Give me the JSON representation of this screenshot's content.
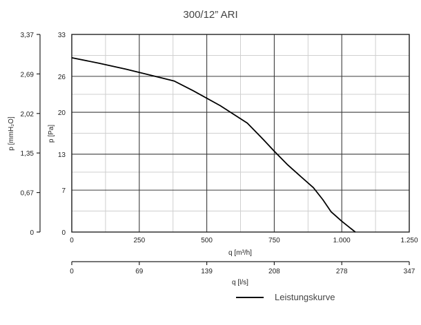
{
  "chart_data": {
    "type": "line",
    "title": "300/12” ARI",
    "xlabel": "q [m³/h]",
    "ylabel": "p [Pa]",
    "xlim": [
      0,
      1250
    ],
    "ylim": [
      0,
      33
    ],
    "x_ticks": [
      0,
      250,
      500,
      750,
      1000,
      1250
    ],
    "x_tick_labels": [
      "0",
      "250",
      "500",
      "750",
      "1.000",
      "1.250"
    ],
    "y_ticks": [
      0,
      7,
      13,
      20,
      26,
      33
    ],
    "y_tick_labels": [
      "0",
      "7",
      "13",
      "20",
      "26",
      "33"
    ],
    "left_axis": {
      "label": "p [mmH₂O]",
      "ticks": [
        "0",
        "0,67",
        "1,35",
        "2,02",
        "2,69",
        "3,37"
      ]
    },
    "bottom_axis": {
      "label": "q [l/s]",
      "ticks": [
        "0",
        "69",
        "139",
        "208",
        "278",
        "347"
      ]
    },
    "grid": true,
    "legend_position": "bottom-right",
    "series": [
      {
        "name": "Leistungskurve",
        "color": "#000000",
        "x": [
          0,
          100,
          200,
          300,
          380,
          450,
          550,
          650,
          700,
          750,
          800,
          850,
          895,
          930,
          960,
          1000,
          1050
        ],
        "y": [
          29.1,
          28.2,
          27.2,
          26.1,
          25.2,
          23.6,
          21.1,
          18.2,
          15.9,
          13.5,
          11.2,
          9.2,
          7.4,
          5.4,
          3.4,
          1.8,
          0
        ]
      }
    ]
  }
}
